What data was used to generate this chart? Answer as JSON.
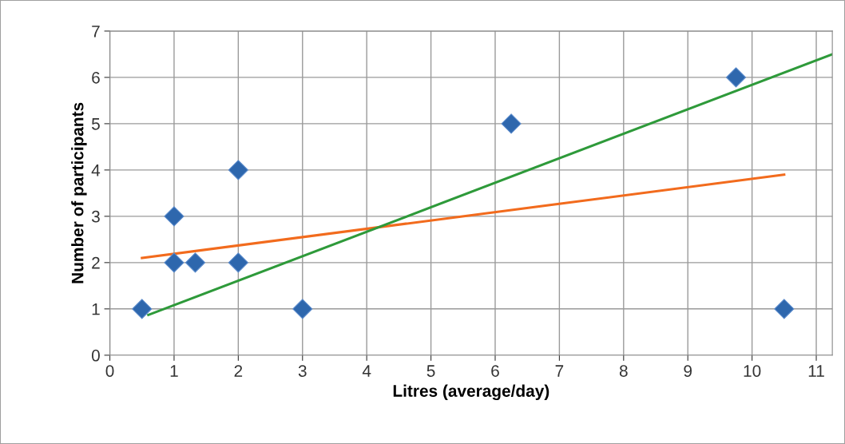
{
  "chart_data": {
    "type": "scatter",
    "xlabel": "Litres (average/day)",
    "ylabel": "Number of participants",
    "xlim": [
      0,
      11.25
    ],
    "xticks": [
      0,
      1,
      2,
      3,
      4,
      5,
      6,
      7,
      8,
      9,
      10,
      11
    ],
    "ylim": [
      0,
      7
    ],
    "yticks": [
      0,
      1,
      2,
      3,
      4,
      5,
      6,
      7
    ],
    "grid": true,
    "series": [
      {
        "color": "#2e67ad",
        "marker": "diamond",
        "x": [
          0.5,
          1,
          1,
          1.33,
          2,
          2,
          3,
          6.25,
          9.75,
          10.5
        ],
        "values": [
          1,
          3,
          2,
          2,
          4,
          2,
          1,
          5,
          6,
          1
        ]
      },
      {
        "type": "line",
        "marker": "none",
        "color": "#f26b1d",
        "x": [
          0.5,
          10.5
        ],
        "values": [
          2.1,
          3.9
        ]
      },
      {
        "type": "line",
        "marker": "none",
        "color": "#2e9a3a",
        "x": [
          0.6,
          11.25
        ],
        "values": [
          0.87,
          6.5
        ]
      }
    ]
  }
}
